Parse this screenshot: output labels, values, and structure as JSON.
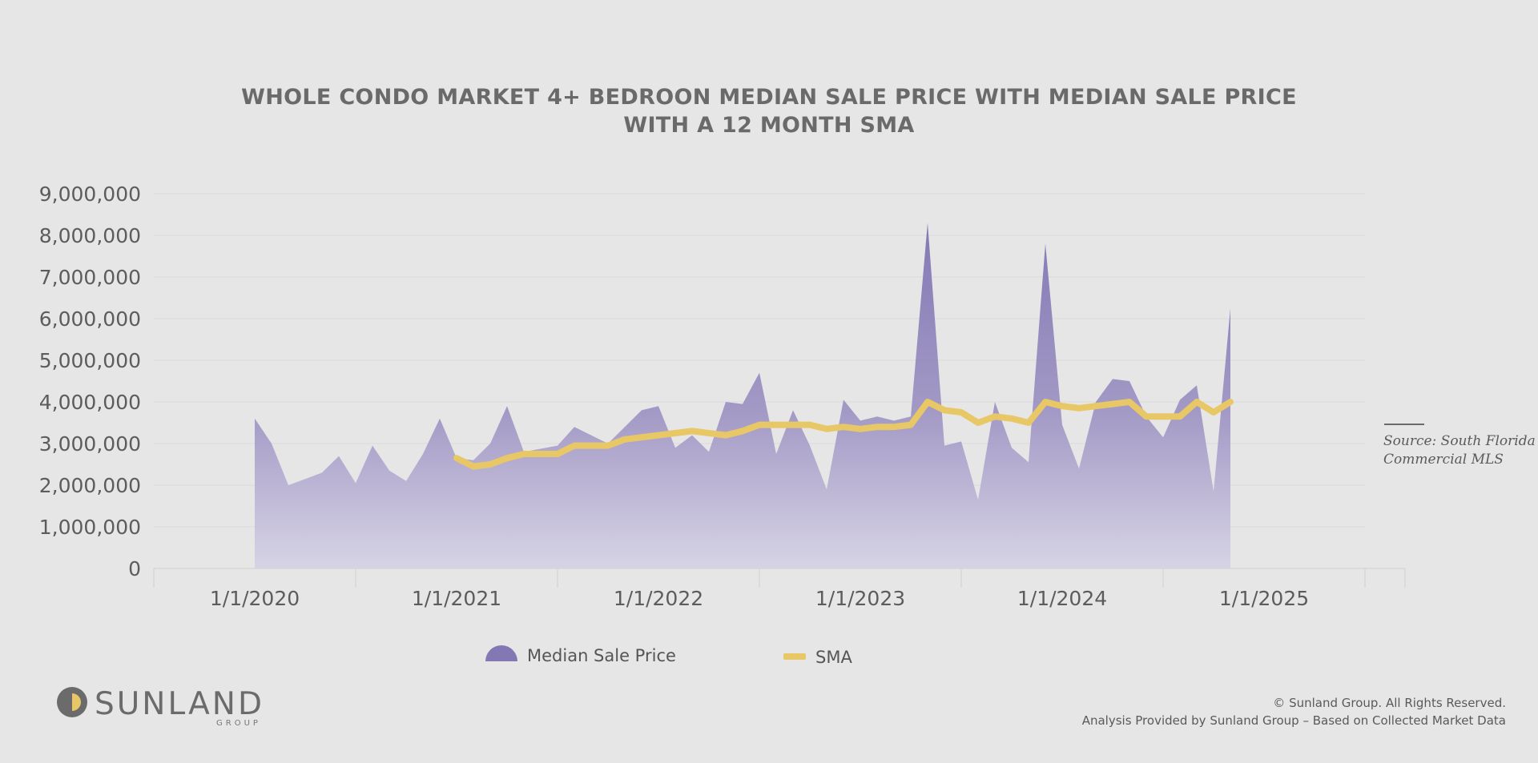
{
  "title_lines": [
    "WHOLE CONDO MARKET 4+ BEDROON MEDIAN SALE PRICE WITH MEDIAN SALE PRICE",
    "WITH A 12 MONTH SMA"
  ],
  "source": {
    "line1": "Source: South Florida",
    "line2": "Commercial MLS"
  },
  "logo": {
    "word": "SUNLAND",
    "sub": "GROUP"
  },
  "footer": {
    "copyright": "© Sunland Group. All Rights Reserved.",
    "analysis": "Analysis Provided by Sunland Group – Based on Collected Market Data"
  },
  "colors": {
    "area": "#8478b4",
    "sma": "#e8c766",
    "grid": "#d9d9d9",
    "background": "#e6e6e6"
  },
  "chart_data": {
    "type": "area",
    "title": "WHOLE CONDO MARKET 4+ BEDROON MEDIAN SALE PRICE WITH MEDIAN SALE PRICE WITH A 12 MONTH SMA",
    "xlabel": "",
    "ylabel": "",
    "ylim": [
      0,
      9000000
    ],
    "yticks": [
      0,
      1000000,
      2000000,
      3000000,
      4000000,
      5000000,
      6000000,
      7000000,
      8000000,
      9000000
    ],
    "ytick_labels": [
      "0",
      "1,000,000",
      "2,000,000",
      "3,000,000",
      "4,000,000",
      "5,000,000",
      "6,000,000",
      "7,000,000",
      "8,000,000",
      "9,000,000"
    ],
    "x_range_months": [
      -6,
      66
    ],
    "xtick_months": [
      0,
      12,
      24,
      36,
      48,
      60
    ],
    "xtick_labels": [
      "1/1/2020",
      "1/1/2021",
      "1/1/2022",
      "1/1/2023",
      "1/1/2024",
      "1/1/2025"
    ],
    "x_unit": "months since 1/1/2020",
    "series": [
      {
        "name": "Median Sale Price",
        "kind": "area",
        "points": [
          [
            0,
            3600000
          ],
          [
            1,
            3000000
          ],
          [
            2,
            2000000
          ],
          [
            4,
            2300000
          ],
          [
            5,
            2700000
          ],
          [
            6,
            2050000
          ],
          [
            7,
            2950000
          ],
          [
            8,
            2350000
          ],
          [
            9,
            2100000
          ],
          [
            10,
            2750000
          ],
          [
            11,
            3600000
          ],
          [
            12,
            2650000
          ],
          [
            13,
            2600000
          ],
          [
            14,
            3000000
          ],
          [
            15,
            3900000
          ],
          [
            16,
            2800000
          ],
          [
            18,
            2950000
          ],
          [
            19,
            3400000
          ],
          [
            21,
            3000000
          ],
          [
            23,
            3800000
          ],
          [
            24,
            3900000
          ],
          [
            25,
            2900000
          ],
          [
            26,
            3200000
          ],
          [
            27,
            2800000
          ],
          [
            28,
            4000000
          ],
          [
            29,
            3950000
          ],
          [
            30,
            4700000
          ],
          [
            31,
            2750000
          ],
          [
            32,
            3800000
          ],
          [
            33,
            2950000
          ],
          [
            34,
            1900000
          ],
          [
            35,
            4050000
          ],
          [
            36,
            3550000
          ],
          [
            37,
            3650000
          ],
          [
            38,
            3550000
          ],
          [
            39,
            3650000
          ],
          [
            40,
            8300000
          ],
          [
            41,
            2950000
          ],
          [
            42,
            3050000
          ],
          [
            43,
            1650000
          ],
          [
            44,
            4000000
          ],
          [
            45,
            2900000
          ],
          [
            46,
            2550000
          ],
          [
            47,
            7800000
          ],
          [
            48,
            3450000
          ],
          [
            49,
            2400000
          ],
          [
            50,
            4000000
          ],
          [
            51,
            4550000
          ],
          [
            52,
            4500000
          ],
          [
            53,
            3650000
          ],
          [
            54,
            3150000
          ],
          [
            55,
            4050000
          ],
          [
            56,
            4400000
          ],
          [
            57,
            1850000
          ],
          [
            58,
            6250000
          ]
        ]
      },
      {
        "name": "SMA",
        "kind": "line",
        "points": [
          [
            12,
            2650000
          ],
          [
            13,
            2450000
          ],
          [
            14,
            2500000
          ],
          [
            15,
            2650000
          ],
          [
            16,
            2750000
          ],
          [
            18,
            2750000
          ],
          [
            19,
            2950000
          ],
          [
            21,
            2950000
          ],
          [
            22,
            3100000
          ],
          [
            24,
            3200000
          ],
          [
            26,
            3300000
          ],
          [
            28,
            3200000
          ],
          [
            29,
            3300000
          ],
          [
            30,
            3450000
          ],
          [
            31,
            3450000
          ],
          [
            32,
            3450000
          ],
          [
            33,
            3450000
          ],
          [
            34,
            3350000
          ],
          [
            35,
            3400000
          ],
          [
            36,
            3350000
          ],
          [
            37,
            3400000
          ],
          [
            38,
            3400000
          ],
          [
            39,
            3450000
          ],
          [
            40,
            4000000
          ],
          [
            41,
            3800000
          ],
          [
            42,
            3750000
          ],
          [
            43,
            3500000
          ],
          [
            44,
            3650000
          ],
          [
            45,
            3600000
          ],
          [
            46,
            3500000
          ],
          [
            47,
            4000000
          ],
          [
            48,
            3900000
          ],
          [
            49,
            3850000
          ],
          [
            50,
            3900000
          ],
          [
            51,
            3950000
          ],
          [
            52,
            4000000
          ],
          [
            53,
            3650000
          ],
          [
            54,
            3650000
          ],
          [
            55,
            3650000
          ],
          [
            56,
            4000000
          ],
          [
            57,
            3750000
          ],
          [
            58,
            4000000
          ]
        ]
      }
    ],
    "legend": {
      "position": "bottom",
      "entries": [
        "Median Sale Price",
        "SMA"
      ]
    }
  }
}
